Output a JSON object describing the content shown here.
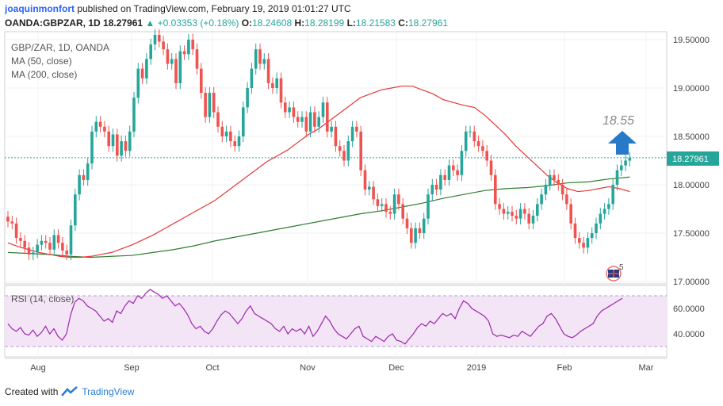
{
  "header": {
    "author": "joaquinmonfort",
    "published": "published on TradingView.com, February 19, 2019 01:01:27 UTC",
    "symbol": "OANDA:GBPZAR, 1D",
    "last": "18.27961",
    "change": "▲ +0.03353 (+0.18%)",
    "o_label": "O:",
    "o_value": "18.24608",
    "h_label": "H:",
    "h_value": "18.28199",
    "l_label": "L:",
    "l_value": "18.21583",
    "c_label": "C:",
    "c_value": "18.27961"
  },
  "footer": {
    "created_with": "Created with",
    "brand": "TradingView"
  },
  "colors": {
    "up": "#26a69a",
    "down": "#ef5350",
    "ma50": "#e53935",
    "ma200": "#2e7d32",
    "rsi": "#9c27b0",
    "rsi_band": "#f3e5f5",
    "arrow": "#2979c9"
  },
  "chart_data": [
    {
      "type": "candlestick",
      "legend": [
        "GBP/ZAR, 1D, OANDA",
        "MA (50, close)",
        "MA (200, close)"
      ],
      "y_ticks": [
        "19.50000",
        "19.00000",
        "18.50000",
        "18.00000",
        "17.50000",
        "17.00000"
      ],
      "ylim": [
        17.0,
        19.5
      ],
      "x_ticks": [
        "Aug",
        "Sep",
        "Oct",
        "Nov",
        "Dec",
        "2019",
        "Feb",
        "Mar"
      ],
      "last_price_label": "18.27961",
      "annotation": {
        "text": "18.55",
        "icon": "up-arrow-icon"
      },
      "badge": {
        "text": "5",
        "icon": "flag-uk-icon"
      },
      "closes": [
        17.62,
        17.6,
        17.45,
        17.42,
        17.35,
        17.28,
        17.3,
        17.38,
        17.42,
        17.4,
        17.33,
        17.48,
        17.4,
        17.32,
        17.28,
        17.58,
        17.9,
        18.1,
        18.05,
        18.22,
        18.55,
        18.65,
        18.6,
        18.55,
        18.4,
        18.52,
        18.3,
        18.45,
        18.35,
        18.55,
        18.9,
        19.2,
        19.1,
        19.3,
        19.45,
        19.55,
        19.48,
        19.4,
        19.25,
        19.3,
        19.05,
        19.38,
        19.35,
        19.5,
        19.4,
        19.2,
        18.95,
        18.7,
        18.95,
        18.75,
        18.6,
        18.5,
        18.55,
        18.45,
        18.4,
        18.5,
        18.8,
        19.0,
        19.2,
        19.4,
        19.25,
        19.3,
        19.05,
        19.0,
        19.1,
        18.85,
        18.75,
        18.8,
        18.7,
        18.65,
        18.7,
        18.55,
        18.75,
        18.6,
        18.7,
        18.85,
        18.55,
        18.6,
        18.4,
        18.35,
        18.25,
        18.45,
        18.6,
        18.55,
        18.15,
        17.95,
        17.98,
        17.85,
        17.78,
        17.8,
        17.72,
        17.7,
        17.9,
        17.8,
        17.65,
        17.55,
        17.4,
        17.55,
        17.5,
        17.65,
        17.9,
        18.0,
        17.95,
        18.1,
        18.05,
        18.2,
        18.15,
        18.1,
        18.35,
        18.55,
        18.55,
        18.45,
        18.4,
        18.35,
        18.25,
        18.1,
        17.8,
        17.75,
        17.7,
        17.72,
        17.68,
        17.65,
        17.75,
        17.7,
        17.6,
        17.68,
        17.8,
        17.9,
        18.0,
        18.1,
        18.05,
        18.0,
        17.9,
        17.8,
        17.6,
        17.45,
        17.4,
        17.35,
        17.45,
        17.5,
        17.6,
        17.7,
        17.75,
        17.8,
        18.0,
        18.15,
        18.2,
        18.25,
        18.28
      ],
      "ma50": [
        17.4,
        17.36,
        17.33,
        17.3,
        17.28,
        17.26,
        17.25,
        17.25,
        17.26,
        17.28,
        17.3,
        17.34,
        17.38,
        17.43,
        17.48,
        17.54,
        17.6,
        17.66,
        17.72,
        17.78,
        17.84,
        17.92,
        18.0,
        18.08,
        18.16,
        18.24,
        18.3,
        18.36,
        18.44,
        18.52,
        18.58,
        18.66,
        18.74,
        18.82,
        18.9,
        18.94,
        18.98,
        19.0,
        19.02,
        19.02,
        18.98,
        18.94,
        18.88,
        18.85,
        18.82,
        18.8,
        18.72,
        18.62,
        18.52,
        18.4,
        18.3,
        18.2,
        18.1,
        18.02,
        17.96,
        17.93,
        17.94,
        17.96,
        17.98,
        17.96,
        17.93
      ],
      "ma200": [
        17.3,
        17.29,
        17.28,
        17.26,
        17.25,
        17.26,
        17.27,
        17.3,
        17.33,
        17.37,
        17.42,
        17.46,
        17.5,
        17.54,
        17.58,
        17.62,
        17.66,
        17.7,
        17.73,
        17.77,
        17.81,
        17.86,
        17.9,
        17.94,
        17.96,
        17.97,
        17.99,
        18.02,
        18.03,
        18.06,
        18.08
      ]
    },
    {
      "type": "line",
      "legend": [
        "RSI (14, close)"
      ],
      "y_ticks": [
        "60.0000",
        "40.0000"
      ],
      "bands": [
        70,
        30
      ],
      "values": [
        48,
        44,
        42,
        45,
        40,
        39,
        43,
        38,
        41,
        46,
        40,
        44,
        38,
        35,
        40,
        55,
        65,
        68,
        66,
        62,
        60,
        58,
        54,
        50,
        52,
        49,
        58,
        56,
        62,
        66,
        64,
        70,
        68,
        72,
        75,
        73,
        71,
        68,
        70,
        66,
        62,
        64,
        60,
        55,
        48,
        44,
        46,
        42,
        40,
        44,
        50,
        55,
        58,
        56,
        52,
        48,
        52,
        58,
        62,
        56,
        54,
        52,
        50,
        48,
        44,
        42,
        46,
        40,
        44,
        42,
        44,
        40,
        46,
        38,
        42,
        48,
        54,
        50,
        44,
        40,
        38,
        36,
        40,
        44,
        46,
        38,
        36,
        34,
        38,
        36,
        34,
        38,
        40,
        35,
        34,
        32,
        36,
        40,
        45,
        48,
        46,
        50,
        48,
        52,
        56,
        54,
        56,
        52,
        60,
        66,
        64,
        60,
        58,
        56,
        54,
        50,
        40,
        38,
        39,
        38,
        37,
        39,
        38,
        42,
        40,
        38,
        42,
        46,
        48,
        54,
        56,
        52,
        46,
        40,
        38,
        37,
        39,
        42,
        44,
        46,
        48,
        54,
        58,
        60,
        62,
        64,
        66,
        68
      ]
    }
  ]
}
